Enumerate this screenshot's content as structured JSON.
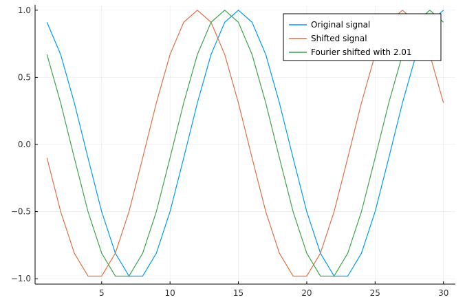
{
  "chart_data": {
    "type": "line",
    "title": "",
    "xlabel": "",
    "ylabel": "",
    "xlim": [
      0.13,
      30.87
    ],
    "ylim": [
      -1.04,
      1.04
    ],
    "x_ticks": [
      5,
      10,
      15,
      20,
      25,
      30
    ],
    "x_tick_labels": [
      "5",
      "10",
      "15",
      "20",
      "25",
      "30"
    ],
    "y_ticks": [
      -1.0,
      -0.5,
      0.0,
      0.5,
      1.0
    ],
    "y_tick_labels": [
      "−1.0",
      "−0.5",
      "0.0",
      "0.5",
      "1.0"
    ],
    "grid": true,
    "legend_position": "top-right",
    "x": [
      1,
      2,
      3,
      4,
      5,
      6,
      7,
      8,
      9,
      10,
      11,
      12,
      13,
      14,
      15,
      16,
      17,
      18,
      19,
      20,
      21,
      22,
      23,
      24,
      25,
      26,
      27,
      28,
      29,
      30
    ],
    "series": [
      {
        "name": "Original signal",
        "color": "#009af9",
        "values": [
          0.91,
          0.67,
          0.31,
          -0.1,
          -0.5,
          -0.81,
          -0.98,
          -0.98,
          -0.81,
          -0.5,
          -0.1,
          0.31,
          0.67,
          0.91,
          1.0,
          0.91,
          0.67,
          0.31,
          -0.1,
          -0.5,
          -0.81,
          -0.98,
          -0.98,
          -0.81,
          -0.5,
          -0.1,
          0.31,
          0.67,
          0.91,
          1.0
        ]
      },
      {
        "name": "Shifted signal",
        "color": "#e26f46",
        "values": [
          -0.1,
          -0.5,
          -0.81,
          -0.98,
          -0.98,
          -0.81,
          -0.5,
          -0.1,
          0.31,
          0.67,
          0.91,
          1.0,
          0.91,
          0.67,
          0.31,
          -0.1,
          -0.5,
          -0.81,
          -0.98,
          -0.98,
          -0.81,
          -0.5,
          -0.1,
          0.31,
          0.67,
          0.91,
          1.0,
          0.91,
          0.67,
          0.31
        ]
      },
      {
        "name": "Fourier shifted with 2.01",
        "color": "#3da44d",
        "values": [
          0.67,
          0.31,
          -0.1,
          -0.5,
          -0.81,
          -0.98,
          -0.98,
          -0.81,
          -0.5,
          -0.1,
          0.31,
          0.67,
          0.91,
          1.0,
          0.91,
          0.67,
          0.31,
          -0.1,
          -0.5,
          -0.81,
          -0.98,
          -0.98,
          -0.81,
          -0.5,
          -0.1,
          0.31,
          0.67,
          0.91,
          1.0,
          0.91
        ]
      }
    ]
  }
}
